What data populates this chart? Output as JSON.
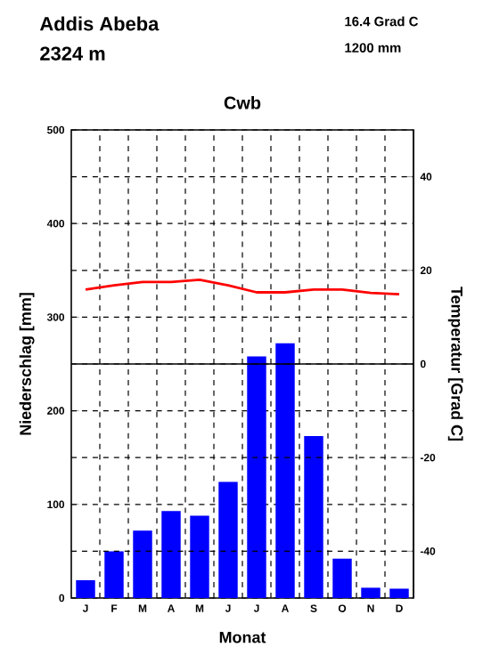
{
  "chart_data": {
    "type": "bar",
    "title": "Cwb",
    "xlabel": "Monat",
    "ylabel": "Niederschlag [mm]",
    "y2label": "Temperatur [Grad C]",
    "annotations": [
      "Addis Abeba",
      "2324 m",
      "16.4 Grad C",
      "1200 mm"
    ],
    "categories": [
      "J",
      "F",
      "M",
      "A",
      "M",
      "J",
      "J",
      "A",
      "S",
      "O",
      "N",
      "D"
    ],
    "series": [
      {
        "color": "#0000ff",
        "values": [
          19,
          50,
          72,
          93,
          88,
          124,
          258,
          272,
          173,
          42,
          11,
          10
        ]
      },
      {
        "type": "line",
        "axis": "y2",
        "color": "#ff0000",
        "values": [
          15.9,
          16.8,
          17.5,
          17.5,
          18.0,
          16.8,
          15.3,
          15.3,
          15.9,
          15.9,
          15.2,
          14.9
        ]
      }
    ],
    "ylim": [
      0,
      500
    ],
    "yticks": [
      0,
      100,
      200,
      300,
      400,
      500
    ],
    "y2lim": [
      -50,
      50
    ],
    "y2ticks": [
      40,
      20,
      0,
      -20,
      -40
    ],
    "ref_lines": [
      {
        "axis": "y2",
        "value": 0,
        "color": "#000000",
        "line_style": "solid"
      }
    ],
    "grid": true
  }
}
